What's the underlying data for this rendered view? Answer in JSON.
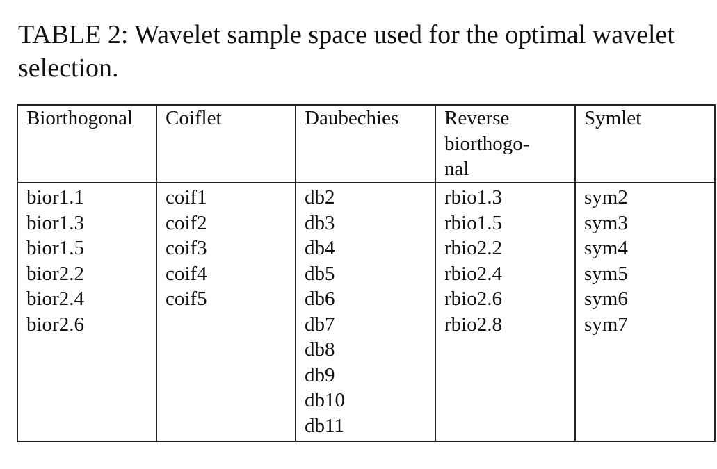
{
  "caption": "TABLE 2: Wavelet sample space used for the optimal wavelet selection.",
  "table": {
    "headers": [
      [
        "Biorthogonal"
      ],
      [
        "Coiflet"
      ],
      [
        "Daubechies"
      ],
      [
        "Reverse",
        "biorthogo-",
        "nal"
      ],
      [
        "Symlet"
      ]
    ],
    "columns": [
      [
        "bior1.1",
        "bior1.3",
        "bior1.5",
        "bior2.2",
        "bior2.4",
        "bior2.6"
      ],
      [
        "coif1",
        "coif2",
        "coif3",
        "coif4",
        "coif5"
      ],
      [
        "db2",
        "db3",
        "db4",
        "db5",
        "db6",
        "db7",
        "db8",
        "db9",
        "db10",
        "db11"
      ],
      [
        "rbio1.3",
        "rbio1.5",
        "rbio2.2",
        "rbio2.4",
        "rbio2.6",
        "rbio2.8"
      ],
      [
        "sym2",
        "sym3",
        "sym4",
        "sym5",
        "sym6",
        "sym7"
      ]
    ]
  }
}
